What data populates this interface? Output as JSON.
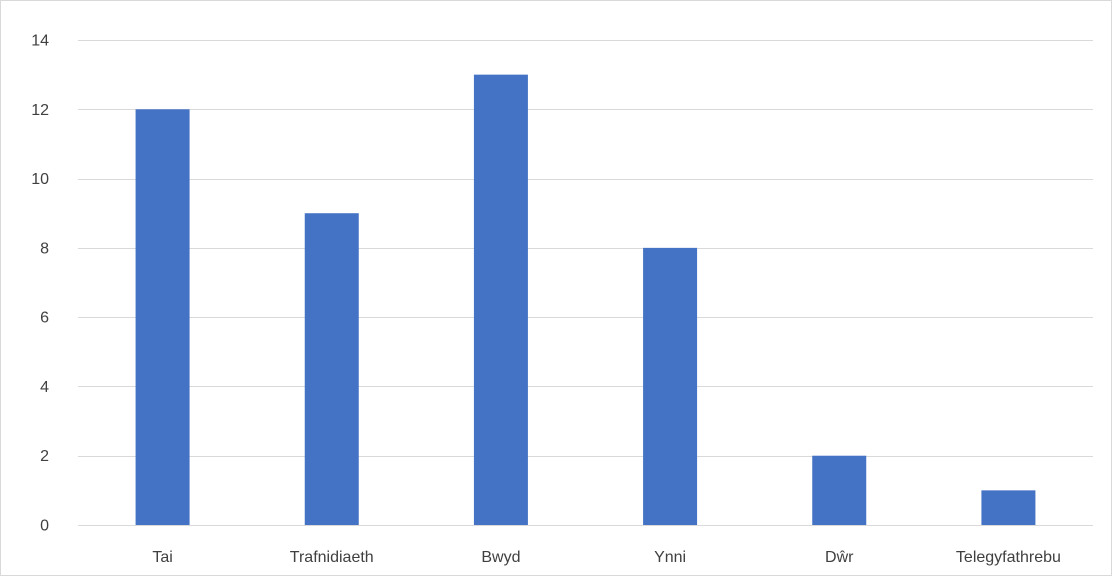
{
  "chart_data": {
    "type": "bar",
    "categories": [
      "Tai",
      "Trafnidiaeth",
      "Bwyd",
      "Ynni",
      "Dŵr",
      "Telegyfathrebu"
    ],
    "values": [
      12,
      9,
      13,
      8,
      2,
      1
    ],
    "ylim": [
      0,
      14
    ],
    "y_ticks": [
      0,
      2,
      4,
      6,
      8,
      10,
      12,
      14
    ],
    "y_tick_labels": [
      "0",
      "2",
      "4",
      "6",
      "8",
      "10",
      "12",
      "14"
    ],
    "grid": true,
    "legend": "none",
    "colors": {
      "bar": "#4472c4",
      "grid": "#d9d9d9",
      "text": "#404040"
    }
  }
}
